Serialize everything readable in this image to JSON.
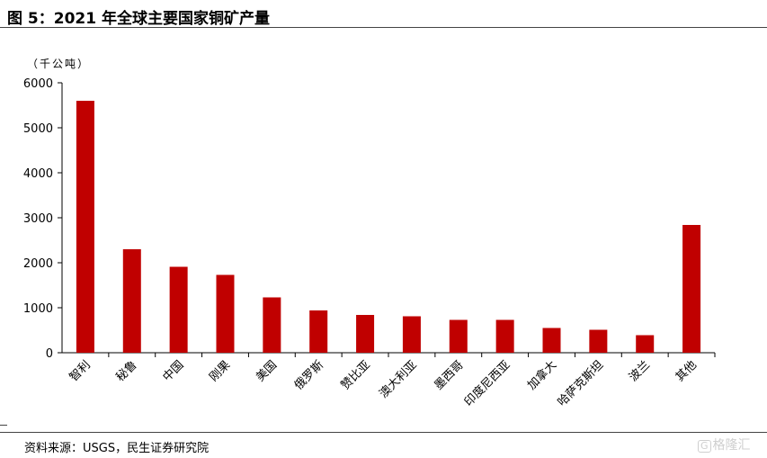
{
  "header": {
    "title": "图 5：2021 年全球主要国家铜矿产量"
  },
  "footer": {
    "source": "资料来源：USGS，民生证券研究院",
    "watermark": "格隆汇",
    "watermark_mark": "G"
  },
  "colors": {
    "bar": "#C00000",
    "axis": "#000000"
  },
  "chart_data": {
    "type": "bar",
    "unit_label": "（千公吨）",
    "categories": [
      "智利",
      "秘鲁",
      "中国",
      "刚果",
      "美国",
      "俄罗斯",
      "赞比亚",
      "澳大利亚",
      "墨西哥",
      "印度尼西亚",
      "加拿大",
      "哈萨克斯坦",
      "波兰",
      "其他"
    ],
    "values": [
      5600,
      2300,
      1910,
      1730,
      1230,
      940,
      840,
      810,
      730,
      730,
      550,
      510,
      390,
      2840
    ],
    "ylim": [
      0,
      6000
    ],
    "yticks": [
      0,
      1000,
      2000,
      3000,
      4000,
      5000,
      6000
    ],
    "grid": false,
    "legend": "none"
  }
}
